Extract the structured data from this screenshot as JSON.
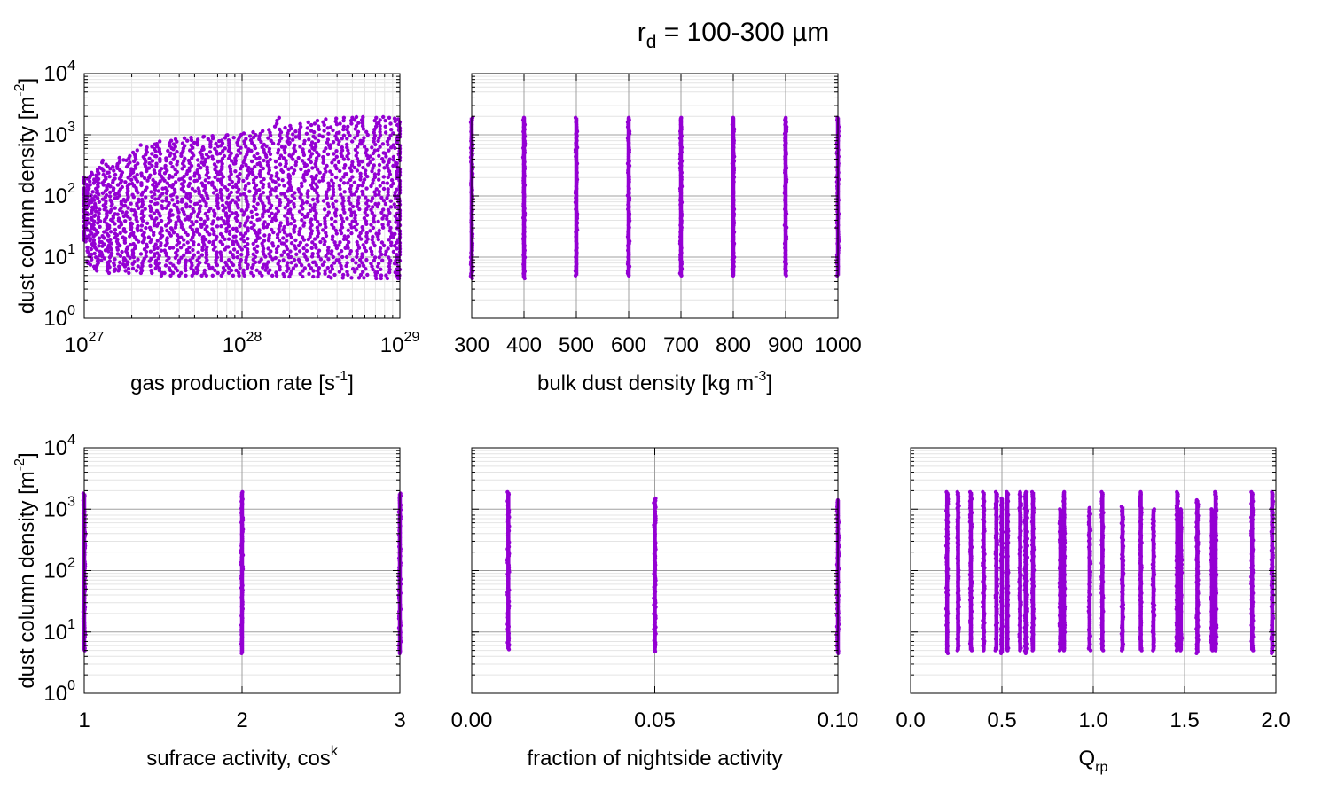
{
  "title": {
    "base": "r",
    "sub": "d",
    "rest": " = 100-300 µm"
  },
  "colors": {
    "points": "#9400d3",
    "grid_major": "#a0a0a0",
    "grid_minor": "#e4e4e4",
    "frame": "#000000"
  },
  "chart_data": [
    {
      "id": "gas",
      "type": "scatter",
      "xscale": "log",
      "xlim": [
        1e+27,
        1e+29
      ],
      "yscale": "log",
      "ylim": [
        1,
        10000
      ],
      "xticks": [
        {
          "v": 1e+27,
          "base": "10",
          "exp": "27"
        },
        {
          "v": 1e+28,
          "base": "10",
          "exp": "28"
        },
        {
          "v": 1e+29,
          "base": "10",
          "exp": "29"
        }
      ],
      "xlabel": {
        "text": "gas production rate [s",
        "sup": "-1",
        "after": "]"
      },
      "ylabel": {
        "text": "dust column density [m",
        "sup": "-2",
        "after": "]"
      },
      "yticks_shown": true,
      "columns": [
        {
          "x": 1e+27,
          "ymin": 18,
          "ymax": 200
        },
        {
          "x": 1.1e+27,
          "ymin": 7,
          "ymax": 240
        },
        {
          "x": 1.2e+27,
          "ymin": 6,
          "ymax": 290
        },
        {
          "x": 1.35e+27,
          "ymin": 6,
          "ymax": 380
        },
        {
          "x": 1.5e+27,
          "ymin": 5.5,
          "ymax": 300
        },
        {
          "x": 1.7e+27,
          "ymin": 6,
          "ymax": 420
        },
        {
          "x": 1.9e+27,
          "ymin": 5.5,
          "ymax": 450
        },
        {
          "x": 2.1e+27,
          "ymin": 6,
          "ymax": 560
        },
        {
          "x": 2.4e+27,
          "ymin": 5.5,
          "ymax": 680
        },
        {
          "x": 2.7e+27,
          "ymin": 5.5,
          "ymax": 700
        },
        {
          "x": 3e+27,
          "ymin": 5,
          "ymax": 780
        },
        {
          "x": 3.4e+27,
          "ymin": 5,
          "ymax": 800
        },
        {
          "x": 3.8e+27,
          "ymin": 5,
          "ymax": 850
        },
        {
          "x": 4.3e+27,
          "ymin": 5,
          "ymax": 880
        },
        {
          "x": 4.8e+27,
          "ymin": 5,
          "ymax": 900
        },
        {
          "x": 5.4e+27,
          "ymin": 5,
          "ymax": 920
        },
        {
          "x": 6e+27,
          "ymin": 5,
          "ymax": 940
        },
        {
          "x": 6.8e+27,
          "ymin": 5,
          "ymax": 960
        },
        {
          "x": 7.6e+27,
          "ymin": 5,
          "ymax": 980
        },
        {
          "x": 8.5e+27,
          "ymin": 5,
          "ymax": 990
        },
        {
          "x": 9.5e+27,
          "ymin": 5,
          "ymax": 1000
        },
        {
          "x": 1.07e+28,
          "ymin": 5,
          "ymax": 1050
        },
        {
          "x": 1.2e+28,
          "ymin": 5,
          "ymax": 1100
        },
        {
          "x": 1.35e+28,
          "ymin": 5,
          "ymax": 1150
        },
        {
          "x": 1.5e+28,
          "ymin": 5,
          "ymax": 1200
        },
        {
          "x": 1.7e+28,
          "ymin": 5,
          "ymax": 1900
        },
        {
          "x": 1.9e+28,
          "ymin": 4.8,
          "ymax": 1300
        },
        {
          "x": 2.1e+28,
          "ymin": 4.8,
          "ymax": 1400
        },
        {
          "x": 2.4e+28,
          "ymin": 4.8,
          "ymax": 1500
        },
        {
          "x": 2.7e+28,
          "ymin": 4.8,
          "ymax": 1600
        },
        {
          "x": 3e+28,
          "ymin": 4.8,
          "ymax": 1700
        },
        {
          "x": 3.4e+28,
          "ymin": 4.8,
          "ymax": 1800
        },
        {
          "x": 3.8e+28,
          "ymin": 4.6,
          "ymax": 1850
        },
        {
          "x": 4.3e+28,
          "ymin": 4.6,
          "ymax": 1900
        },
        {
          "x": 4.8e+28,
          "ymin": 4.6,
          "ymax": 1900
        },
        {
          "x": 5.4e+28,
          "ymin": 4.6,
          "ymax": 1950
        },
        {
          "x": 6e+28,
          "ymin": 4.6,
          "ymax": 1950
        },
        {
          "x": 6.8e+28,
          "ymin": 4.5,
          "ymax": 1900
        },
        {
          "x": 7.6e+28,
          "ymin": 4.5,
          "ymax": 1950
        },
        {
          "x": 8.5e+28,
          "ymin": 4.5,
          "ymax": 1900
        },
        {
          "x": 9.5e+28,
          "ymin": 4.5,
          "ymax": 1850
        },
        {
          "x": 1e+29,
          "ymin": 4.5,
          "ymax": 1800
        }
      ]
    },
    {
      "id": "bulk",
      "type": "scatter",
      "xscale": "linear",
      "xlim": [
        300,
        1000
      ],
      "yscale": "log",
      "ylim": [
        1,
        10000
      ],
      "xticks": [
        {
          "v": 300,
          "label": "300"
        },
        {
          "v": 400,
          "label": "400"
        },
        {
          "v": 500,
          "label": "500"
        },
        {
          "v": 600,
          "label": "600"
        },
        {
          "v": 700,
          "label": "700"
        },
        {
          "v": 800,
          "label": "800"
        },
        {
          "v": 900,
          "label": "900"
        },
        {
          "v": 1000,
          "label": "1000"
        }
      ],
      "xlabel": {
        "text": "bulk dust density [kg m",
        "sup": "-3",
        "after": "]"
      },
      "yticks_shown": false,
      "columns": [
        {
          "x": 300,
          "ymin": 4.5,
          "ymax": 1900
        },
        {
          "x": 400,
          "ymin": 4.5,
          "ymax": 1900
        },
        {
          "x": 500,
          "ymin": 5,
          "ymax": 1900
        },
        {
          "x": 600,
          "ymin": 5,
          "ymax": 1900
        },
        {
          "x": 700,
          "ymin": 5,
          "ymax": 1900
        },
        {
          "x": 800,
          "ymin": 5,
          "ymax": 1900
        },
        {
          "x": 900,
          "ymin": 5,
          "ymax": 1900
        },
        {
          "x": 1000,
          "ymin": 5,
          "ymax": 1900
        }
      ]
    },
    {
      "id": "surf",
      "type": "scatter",
      "xscale": "linear",
      "xlim": [
        1,
        3
      ],
      "yscale": "log",
      "ylim": [
        1,
        10000
      ],
      "xticks": [
        {
          "v": 1,
          "label": "1"
        },
        {
          "v": 2,
          "label": "2"
        },
        {
          "v": 3,
          "label": "3"
        }
      ],
      "xlabel": {
        "text": "sufrace activity, cos",
        "sup": "k",
        "after": ""
      },
      "ylabel": {
        "text": "dust column density [m",
        "sup": "-2",
        "after": "]"
      },
      "yticks_shown": true,
      "columns": [
        {
          "x": 1,
          "ymin": 5,
          "ymax": 1800
        },
        {
          "x": 2,
          "ymin": 4.5,
          "ymax": 1900
        },
        {
          "x": 3,
          "ymin": 4.5,
          "ymax": 1800
        }
      ]
    },
    {
      "id": "night",
      "type": "scatter",
      "xscale": "linear",
      "xlim": [
        0,
        0.1
      ],
      "yscale": "log",
      "ylim": [
        1,
        10000
      ],
      "xticks": [
        {
          "v": 0,
          "label": "0.00"
        },
        {
          "v": 0.05,
          "label": "0.05"
        },
        {
          "v": 0.1,
          "label": "0.10"
        }
      ],
      "xlabel": {
        "text": "fraction of nightside activity",
        "sup": "",
        "after": ""
      },
      "yticks_shown": false,
      "columns": [
        {
          "x": 0.01,
          "ymin": 5.2,
          "ymax": 1900
        },
        {
          "x": 0.05,
          "ymin": 4.8,
          "ymax": 1500
        },
        {
          "x": 0.1,
          "ymin": 4.5,
          "ymax": 1400
        }
      ]
    },
    {
      "id": "qrp",
      "type": "scatter",
      "xscale": "linear",
      "xlim": [
        0,
        2
      ],
      "yscale": "log",
      "ylim": [
        1,
        10000
      ],
      "xticks": [
        {
          "v": 0,
          "label": "0.0"
        },
        {
          "v": 0.5,
          "label": "0.5"
        },
        {
          "v": 1,
          "label": "1.0"
        },
        {
          "v": 1.5,
          "label": "1.5"
        },
        {
          "v": 2,
          "label": "2.0"
        }
      ],
      "xlabel": {
        "text": "Q",
        "sub": "rp",
        "after": ""
      },
      "yticks_shown": false,
      "columns": [
        {
          "x": 0.2,
          "ymin": 4.5,
          "ymax": 1900
        },
        {
          "x": 0.26,
          "ymin": 5,
          "ymax": 1900
        },
        {
          "x": 0.33,
          "ymin": 5,
          "ymax": 1900
        },
        {
          "x": 0.4,
          "ymin": 5,
          "ymax": 1900
        },
        {
          "x": 0.47,
          "ymin": 5,
          "ymax": 1900
        },
        {
          "x": 0.5,
          "ymin": 4.5,
          "ymax": 1500
        },
        {
          "x": 0.53,
          "ymin": 5,
          "ymax": 1900
        },
        {
          "x": 0.6,
          "ymin": 5,
          "ymax": 1900
        },
        {
          "x": 0.63,
          "ymin": 4.5,
          "ymax": 1900
        },
        {
          "x": 0.67,
          "ymin": 5,
          "ymax": 1900
        },
        {
          "x": 0.82,
          "ymin": 5,
          "ymax": 1000
        },
        {
          "x": 0.84,
          "ymin": 5,
          "ymax": 1900
        },
        {
          "x": 0.98,
          "ymin": 5,
          "ymax": 1050
        },
        {
          "x": 1.05,
          "ymin": 5,
          "ymax": 1900
        },
        {
          "x": 1.16,
          "ymin": 5,
          "ymax": 1100
        },
        {
          "x": 1.26,
          "ymin": 5,
          "ymax": 1900
        },
        {
          "x": 1.33,
          "ymin": 5,
          "ymax": 1000
        },
        {
          "x": 1.46,
          "ymin": 5,
          "ymax": 1900
        },
        {
          "x": 1.48,
          "ymin": 5,
          "ymax": 1000
        },
        {
          "x": 1.57,
          "ymin": 4.5,
          "ymax": 1400
        },
        {
          "x": 1.65,
          "ymin": 5,
          "ymax": 1000
        },
        {
          "x": 1.67,
          "ymin": 5,
          "ymax": 1900
        },
        {
          "x": 1.87,
          "ymin": 5,
          "ymax": 1900
        },
        {
          "x": 1.98,
          "ymin": 4.5,
          "ymax": 1900
        }
      ]
    }
  ]
}
